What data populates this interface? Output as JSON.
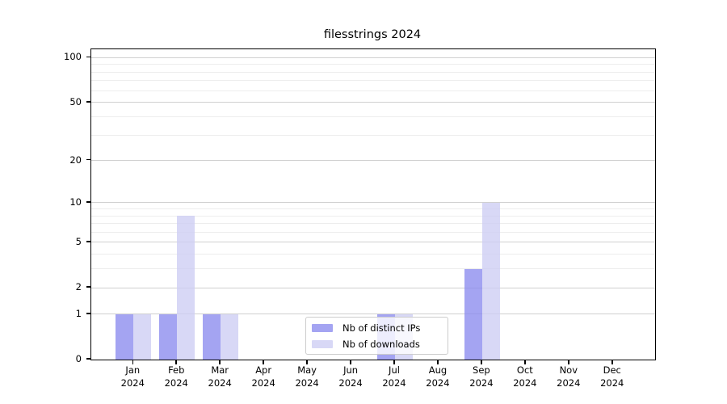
{
  "chart_data": {
    "type": "bar",
    "title": "filesstrings 2024",
    "months": [
      "Jan",
      "Feb",
      "Mar",
      "Apr",
      "May",
      "Jun",
      "Jul",
      "Aug",
      "Sep",
      "Oct",
      "Nov",
      "Dec"
    ],
    "year_label": "2024",
    "categories": [
      "Jan 2024",
      "Feb 2024",
      "Mar 2024",
      "Apr 2024",
      "May 2024",
      "Jun 2024",
      "Jul 2024",
      "Aug 2024",
      "Sep 2024",
      "Oct 2024",
      "Nov 2024",
      "Dec 2024"
    ],
    "series": [
      {
        "name": "Nb of distinct IPs",
        "color": "rgba(138, 138, 238, 0.78)",
        "values": [
          1,
          1,
          1,
          0,
          0,
          0,
          1,
          0,
          3,
          0,
          0,
          0
        ]
      },
      {
        "name": "Nb of downloads",
        "color": "rgba(205, 205, 244, 0.78)",
        "values": [
          1,
          8,
          1,
          0,
          0,
          0,
          1,
          0,
          10,
          0,
          0,
          0
        ]
      }
    ],
    "yscale": "log(1+y)",
    "ylim": [
      0,
      114
    ],
    "y_major_ticks": [
      0,
      1,
      2,
      5,
      10,
      20,
      50,
      100
    ],
    "y_minor_ticks": [
      3,
      4,
      6,
      7,
      8,
      9,
      30,
      40,
      60,
      70,
      80,
      90
    ],
    "grid": "horizontal",
    "legend_position": "lower center"
  },
  "colors": {
    "grid_major": "#d0d0d0",
    "grid_minor": "#ededed",
    "spine": "#000000",
    "background": "#ffffff",
    "legend_border": "#cccccc"
  }
}
